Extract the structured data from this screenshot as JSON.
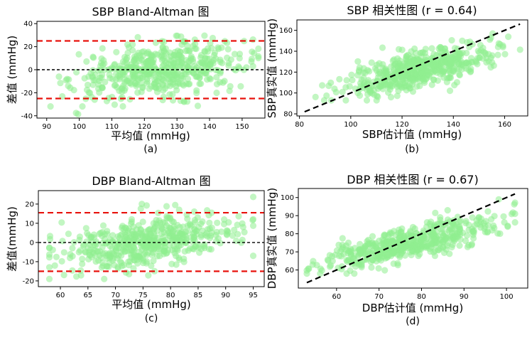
{
  "chart_data": [
    {
      "id": "a",
      "type": "scatter",
      "title": "SBP Bland-Altman 图",
      "xlabel": "平均值 (mmHg)",
      "ylabel": "差值 (mmHg)",
      "caption": "(a)",
      "xlim": [
        87,
        157
      ],
      "ylim": [
        -42,
        42
      ],
      "xticks": [
        90,
        100,
        110,
        120,
        130,
        140,
        150
      ],
      "yticks": [
        -40,
        -20,
        0,
        20,
        40
      ],
      "hlines": [
        {
          "y": 25,
          "style": "red-dashed"
        },
        {
          "y": 0,
          "style": "black-dashed"
        },
        {
          "y": -25,
          "style": "red-dashed"
        }
      ],
      "point_color": "#90ee90",
      "cloud": {
        "x_mean": 125,
        "x_sd": 13,
        "x_min": 89,
        "x_max": 155,
        "slope": 0.28,
        "y_sd": 11,
        "y_clip": [
          -39,
          38
        ],
        "n": 520
      }
    },
    {
      "id": "b",
      "type": "scatter",
      "title": "SBP 相关性图 (r = 0.64)",
      "xlabel": "SBP估计值 (mmHg)",
      "ylabel": "SBP真实值 (mmHg)",
      "caption": "(b)",
      "xlim": [
        79,
        169
      ],
      "ylim": [
        78,
        170
      ],
      "xticks": [
        80,
        100,
        120,
        140,
        160
      ],
      "yticks": [
        80,
        100,
        120,
        140,
        160
      ],
      "identity_line": {
        "x0": 82,
        "y0": 82,
        "x1": 166,
        "y1": 166,
        "style": "black-dashed"
      },
      "point_color": "#90ee90",
      "cloud": {
        "x_mean": 127,
        "x_sd": 14,
        "x_min": 82,
        "x_max": 166,
        "slope": 0.55,
        "intercept_at_mean": 123,
        "y_sd": 9,
        "y_clip": [
          93,
          157
        ],
        "n": 520
      }
    },
    {
      "id": "c",
      "type": "scatter",
      "title": "DBP Bland-Altman 图",
      "xlabel": "平均值 (mmHg)",
      "ylabel": "差值(mmHg)",
      "caption": "(c)",
      "xlim": [
        56,
        97
      ],
      "ylim": [
        -23,
        27
      ],
      "xticks": [
        60,
        65,
        70,
        75,
        80,
        85,
        90,
        95
      ],
      "yticks": [
        -20,
        -10,
        0,
        10,
        20
      ],
      "hlines": [
        {
          "y": 15.5,
          "style": "red-dashed"
        },
        {
          "y": 0,
          "style": "black-dashed"
        },
        {
          "y": -15,
          "style": "red-dashed"
        }
      ],
      "point_color": "#90ee90",
      "cloud": {
        "x_mean": 76,
        "x_sd": 8,
        "x_min": 58,
        "x_max": 95,
        "slope": 0.45,
        "y_sd": 6.5,
        "y_clip": [
          -19,
          26
        ],
        "n": 520
      }
    },
    {
      "id": "d",
      "type": "scatter",
      "title": "DBP 相关性图 (r = 0.67)",
      "xlabel": "DBP估计值 (mmHg)",
      "ylabel": "DBP真实值 (mmHg)",
      "caption": "(d)",
      "xlim": [
        51,
        105
      ],
      "ylim": [
        50,
        105
      ],
      "xticks": [
        60,
        70,
        80,
        90,
        100
      ],
      "yticks": [
        60,
        70,
        80,
        90,
        100
      ],
      "identity_line": {
        "x0": 53,
        "y0": 53,
        "x1": 102,
        "y1": 102,
        "style": "black-dashed"
      },
      "point_color": "#90ee90",
      "cloud": {
        "x_mean": 77,
        "x_sd": 10,
        "x_min": 53,
        "x_max": 102,
        "slope": 0.55,
        "intercept_at_mean": 75,
        "y_sd": 4.5,
        "y_clip": [
          58,
          99
        ],
        "n": 520
      }
    }
  ]
}
